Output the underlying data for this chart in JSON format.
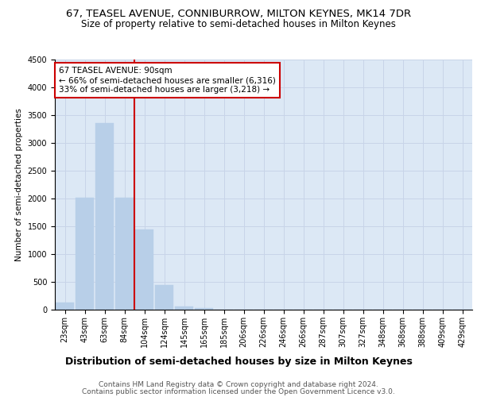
{
  "title_line1": "67, TEASEL AVENUE, CONNIBURROW, MILTON KEYNES, MK14 7DR",
  "title_line2": "Size of property relative to semi-detached houses in Milton Keynes",
  "xlabel": "Distribution of semi-detached houses by size in Milton Keynes",
  "ylabel": "Number of semi-detached properties",
  "categories": [
    "23sqm",
    "43sqm",
    "63sqm",
    "84sqm",
    "104sqm",
    "124sqm",
    "145sqm",
    "165sqm",
    "185sqm",
    "206sqm",
    "226sqm",
    "246sqm",
    "266sqm",
    "287sqm",
    "307sqm",
    "327sqm",
    "348sqm",
    "368sqm",
    "388sqm",
    "409sqm",
    "429sqm"
  ],
  "values": [
    130,
    2020,
    3360,
    2010,
    1450,
    450,
    60,
    30,
    0,
    0,
    0,
    0,
    0,
    0,
    0,
    0,
    0,
    0,
    0,
    0,
    0
  ],
  "bar_color": "#b8cfe8",
  "bar_edge_color": "#b8cfe8",
  "property_line_color": "#cc0000",
  "annotation_text": "67 TEASEL AVENUE: 90sqm\n← 66% of semi-detached houses are smaller (6,316)\n33% of semi-detached houses are larger (3,218) →",
  "annotation_box_facecolor": "#ffffff",
  "annotation_box_edgecolor": "#cc0000",
  "ylim": [
    0,
    4500
  ],
  "yticks": [
    0,
    500,
    1000,
    1500,
    2000,
    2500,
    3000,
    3500,
    4000,
    4500
  ],
  "grid_color": "#c8d4e8",
  "background_color": "#dce8f5",
  "footer_line1": "Contains HM Land Registry data © Crown copyright and database right 2024.",
  "footer_line2": "Contains public sector information licensed under the Open Government Licence v3.0.",
  "title1_fontsize": 9.5,
  "title2_fontsize": 8.5,
  "xlabel_fontsize": 9,
  "ylabel_fontsize": 7.5,
  "tick_fontsize": 7,
  "annotation_fontsize": 7.5,
  "footer_fontsize": 6.5
}
